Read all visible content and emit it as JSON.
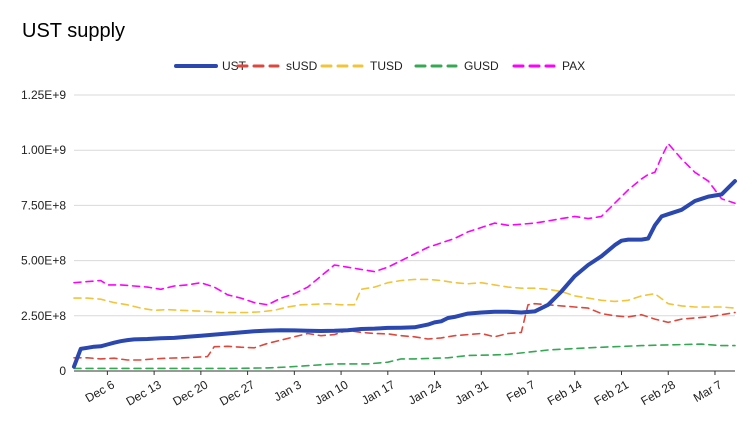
{
  "chart_data": {
    "type": "line",
    "title": "UST supply",
    "xlabel": "",
    "ylabel": "",
    "ylim": [
      0,
      1250000000
    ],
    "y_ticks": [
      "0",
      "2.50E+8",
      "5.00E+8",
      "7.50E+8",
      "1.00E+9",
      "1.25E+9"
    ],
    "x_tick_labels": [
      "Dec 6",
      "Dec 13",
      "Dec 20",
      "Dec 27",
      "Jan 3",
      "Jan 10",
      "Jan 17",
      "Jan 24",
      "Jan 31",
      "Feb 7",
      "Feb 14",
      "Feb 21",
      "Feb 28",
      "Mar 7"
    ],
    "x_tick_positions": [
      6,
      13,
      20,
      27,
      34,
      41,
      48,
      55,
      62,
      69,
      76,
      83,
      90,
      97
    ],
    "x_range": [
      1,
      100
    ],
    "grid": true,
    "legend_position": "top",
    "series": [
      {
        "name": "UST",
        "color": "#2b48b0",
        "style": "solid",
        "x": [
          1,
          2,
          3,
          4,
          5,
          6,
          7,
          8,
          9,
          10,
          12,
          14,
          16,
          18,
          20,
          22,
          24,
          26,
          28,
          30,
          32,
          34,
          36,
          38,
          40,
          42,
          44,
          46,
          48,
          50,
          52,
          54,
          55,
          56,
          57,
          58,
          60,
          62,
          64,
          66,
          68,
          70,
          72,
          74,
          76,
          78,
          80,
          82,
          83,
          84,
          86,
          87,
          88,
          89,
          90,
          92,
          94,
          95,
          96,
          98,
          100
        ],
        "y": [
          20,
          100,
          105,
          110,
          112,
          120,
          128,
          135,
          140,
          143,
          145,
          148,
          150,
          155,
          160,
          165,
          170,
          175,
          180,
          183,
          185,
          184,
          182,
          181,
          182,
          185,
          190,
          192,
          195,
          196,
          198,
          210,
          220,
          225,
          240,
          245,
          260,
          265,
          268,
          268,
          265,
          270,
          300,
          360,
          430,
          480,
          520,
          570,
          590,
          595,
          595,
          600,
          660,
          700,
          710,
          730,
          770,
          780,
          790,
          800,
          860
        ],
        "scale": 1000000
      },
      {
        "name": "sUSD",
        "color": "#e0473c",
        "style": "dashed",
        "x": [
          1,
          3,
          5,
          7,
          9,
          11,
          13,
          15,
          17,
          19,
          21,
          22,
          24,
          26,
          28,
          30,
          32,
          34,
          36,
          38,
          40,
          42,
          44,
          46,
          48,
          50,
          52,
          54,
          56,
          58,
          60,
          62,
          64,
          66,
          68,
          69,
          70,
          72,
          74,
          76,
          78,
          80,
          82,
          84,
          86,
          88,
          90,
          92,
          94,
          96,
          98,
          100
        ],
        "y": [
          60,
          60,
          55,
          58,
          50,
          50,
          55,
          58,
          60,
          62,
          65,
          110,
          112,
          108,
          105,
          125,
          140,
          155,
          170,
          160,
          165,
          185,
          175,
          170,
          168,
          160,
          155,
          145,
          150,
          160,
          165,
          170,
          155,
          170,
          175,
          300,
          305,
          300,
          295,
          290,
          285,
          260,
          250,
          245,
          255,
          235,
          220,
          235,
          240,
          245,
          255,
          265
        ],
        "scale": 1000000
      },
      {
        "name": "TUSD",
        "color": "#f2c43a",
        "style": "dashed",
        "x": [
          1,
          3,
          5,
          7,
          9,
          11,
          13,
          15,
          17,
          19,
          21,
          23,
          25,
          27,
          29,
          31,
          33,
          35,
          37,
          39,
          41,
          43,
          44,
          45,
          46,
          48,
          50,
          52,
          54,
          56,
          58,
          60,
          62,
          64,
          66,
          68,
          70,
          72,
          74,
          76,
          78,
          80,
          82,
          84,
          86,
          88,
          90,
          92,
          94,
          96,
          98,
          100
        ],
        "y": [
          330,
          330,
          325,
          310,
          300,
          285,
          275,
          278,
          275,
          272,
          270,
          265,
          265,
          265,
          268,
          275,
          290,
          300,
          302,
          305,
          300,
          300,
          370,
          375,
          380,
          400,
          410,
          415,
          415,
          410,
          400,
          395,
          400,
          390,
          380,
          375,
          375,
          370,
          360,
          340,
          330,
          320,
          315,
          320,
          340,
          350,
          305,
          295,
          290,
          290,
          290,
          285
        ],
        "scale": 1000000
      },
      {
        "name": "GUSD",
        "color": "#34a853",
        "style": "dashed",
        "x": [
          1,
          5,
          10,
          15,
          20,
          25,
          30,
          33,
          35,
          38,
          40,
          45,
          48,
          50,
          52,
          55,
          57,
          60,
          63,
          66,
          69,
          72,
          75,
          78,
          82,
          86,
          90,
          95,
          98,
          100
        ],
        "y": [
          12,
          12,
          12,
          12,
          12,
          12,
          14,
          18,
          22,
          28,
          32,
          32,
          40,
          55,
          55,
          58,
          60,
          70,
          72,
          75,
          85,
          95,
          100,
          105,
          110,
          115,
          118,
          122,
          115,
          115
        ],
        "scale": 1000000
      },
      {
        "name": "PAX",
        "color": "#ff00ff",
        "style": "dashed",
        "x": [
          1,
          3,
          5,
          6,
          8,
          10,
          12,
          14,
          16,
          18,
          20,
          22,
          24,
          26,
          28,
          30,
          32,
          34,
          36,
          38,
          40,
          42,
          44,
          46,
          48,
          50,
          52,
          54,
          56,
          58,
          60,
          62,
          64,
          66,
          68,
          70,
          72,
          74,
          76,
          78,
          80,
          82,
          84,
          86,
          87,
          88,
          89,
          90,
          92,
          94,
          96,
          98,
          100
        ],
        "y": [
          400,
          405,
          410,
          390,
          390,
          385,
          380,
          370,
          385,
          390,
          400,
          380,
          345,
          330,
          310,
          300,
          330,
          350,
          380,
          430,
          480,
          470,
          460,
          450,
          470,
          500,
          530,
          560,
          580,
          600,
          630,
          650,
          670,
          660,
          665,
          670,
          680,
          690,
          700,
          690,
          700,
          760,
          820,
          870,
          890,
          900,
          970,
          1030,
          960,
          900,
          860,
          780,
          760
        ],
        "scale": 1000000
      }
    ]
  }
}
